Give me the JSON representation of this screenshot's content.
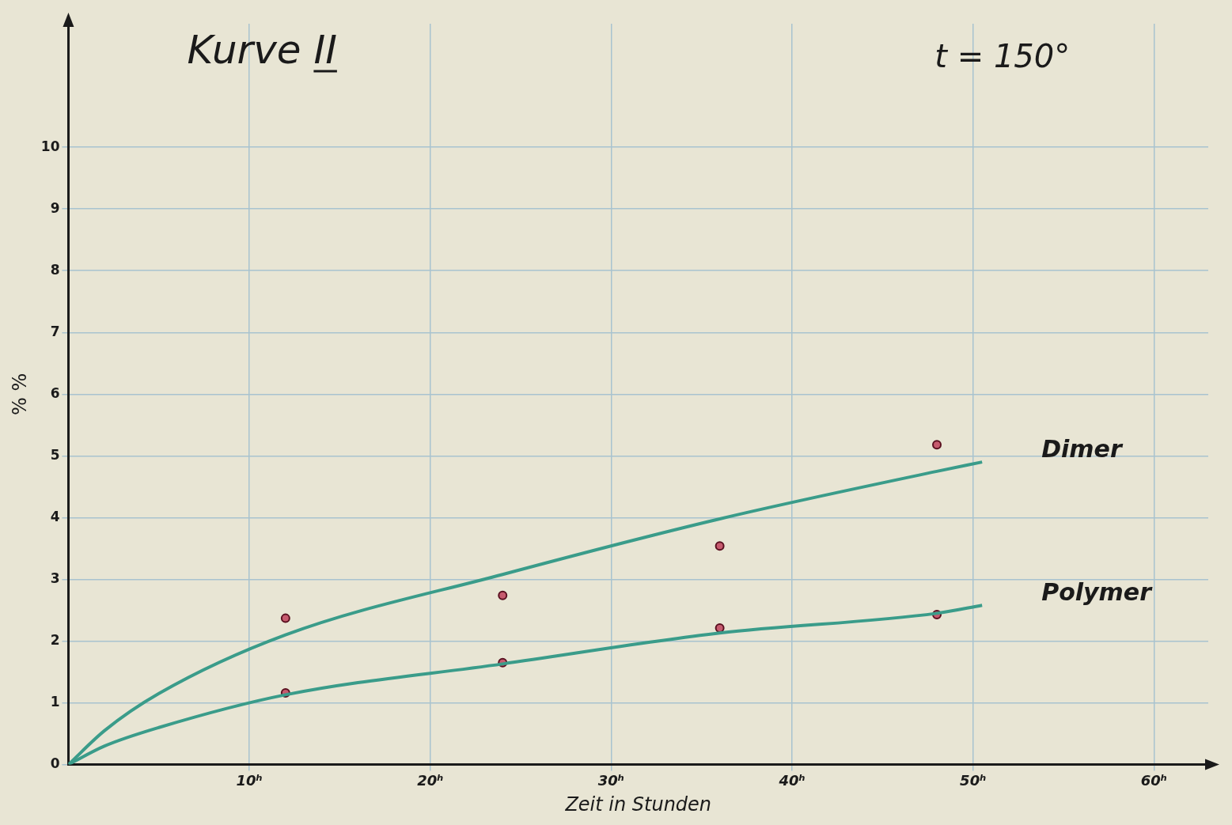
{
  "chart_data": {
    "type": "line",
    "title": "Kurve II",
    "annotation": "t = 150°",
    "x_label": "Zeit in Stunden",
    "y_label": "% %",
    "xlim": [
      0,
      63
    ],
    "xticks": [
      {
        "value": 10,
        "label": "10ʰ"
      },
      {
        "value": 20,
        "label": "20ʰ"
      },
      {
        "value": 30,
        "label": "30ʰ"
      },
      {
        "value": 40,
        "label": "40ʰ"
      },
      {
        "value": 50,
        "label": "50ʰ"
      },
      {
        "value": 60,
        "label": "60ʰ"
      }
    ],
    "ylim": [
      0,
      12
    ],
    "yticks": [
      0,
      1,
      2,
      3,
      4,
      5,
      6,
      7,
      8,
      9,
      10
    ],
    "grid": true,
    "series": [
      {
        "name": "Dimer",
        "color": "#3a9c8a",
        "points": {
          "x": [
            12,
            24,
            36,
            48
          ],
          "values": [
            2.37,
            2.74,
            3.54,
            5.18
          ],
          "color": "#c65a6e",
          "marker": "circle"
        },
        "curve": {
          "x": [
            0,
            2,
            5,
            12,
            24,
            36,
            48,
            50.5
          ],
          "values": [
            0,
            0.55,
            1.15,
            2.1,
            3.08,
            3.98,
            4.75,
            4.9
          ],
          "color": "#3a9c8a",
          "line_style": "solid"
        }
      },
      {
        "name": "Polymer",
        "color": "#3a9c8a",
        "points": {
          "x": [
            12,
            24,
            36,
            48
          ],
          "values": [
            1.16,
            1.65,
            2.21,
            2.43
          ],
          "color": "#c65a6e",
          "marker": "circle"
        },
        "curve": {
          "x": [
            0,
            2,
            5,
            12,
            24,
            36,
            48,
            50.5
          ],
          "values": [
            0,
            0.3,
            0.6,
            1.13,
            1.63,
            2.13,
            2.45,
            2.58
          ],
          "color": "#3a9c8a",
          "line_style": "solid"
        }
      }
    ]
  }
}
